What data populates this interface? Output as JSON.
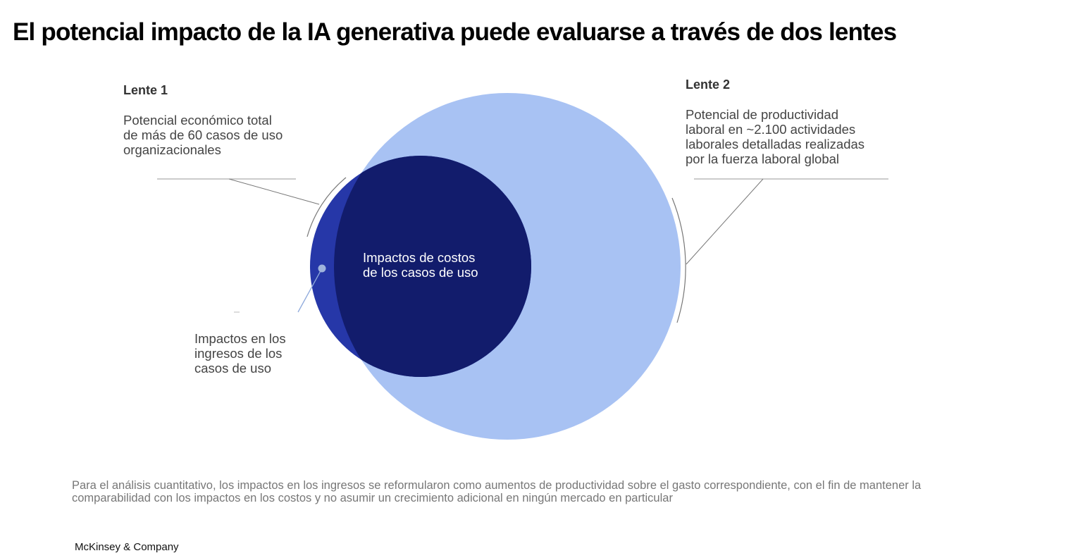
{
  "title": "El potencial impacto de la IA generativa puede evaluarse a través de dos lentes",
  "lens1": {
    "heading": "Lente 1",
    "description": [
      "Potencial económico total",
      "de más de 60 casos de uso",
      "organizacionales"
    ]
  },
  "lens2": {
    "heading": "Lente 2",
    "description": [
      "Potencial de productividad",
      "laboral en ~2.100 actividades",
      "laborales detalladas realizadas",
      "por la fuerza laboral global"
    ]
  },
  "inner_label": [
    "Impactos de costos",
    "de los casos de uso"
  ],
  "revenue_label": [
    "Impactos en los",
    "ingresos de los",
    "casos de uso"
  ],
  "footnote": [
    "Para el análisis cuantitativo, los impactos en los ingresos se reformularon como aumentos de productividad sobre el gasto correspondiente, con el fin de mantener la",
    "comparabilidad con los impactos en los costos y no asumir un crecimiento adicional en ningún mercado en particular"
  ],
  "brand": "McKinsey & Company",
  "colors": {
    "lens2_circle": "#a8c2f3",
    "lens1_outside": "#2637a8",
    "overlap": "#121c6c",
    "leader_line": "#888888",
    "revenue_pointer": "#8faadc"
  }
}
